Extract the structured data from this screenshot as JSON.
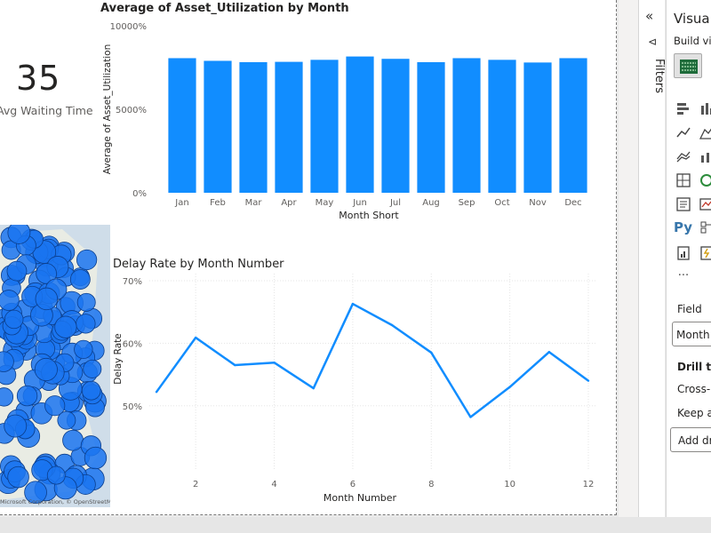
{
  "card": {
    "value": "35",
    "label": "Avg Waiting Time"
  },
  "bar_chart": {
    "title": "Average of Asset_Utilization by Month",
    "xlabel": "Month Short",
    "ylabel": "Average of Asset_Utilization",
    "bar_color": "#118dff"
  },
  "line_chart": {
    "title": "Delay Rate by Month Number",
    "xlabel": "Month Number",
    "ylabel": "Delay Rate",
    "line_color": "#118dff"
  },
  "map": {
    "attribution": "Microsoft Corporation, © OpenStreetMap  Terms",
    "bubble_color": "#1a74f0",
    "bubble_count": 130
  },
  "filters_pane": {
    "collapse_icon": "«",
    "funnel_icon": "⊲",
    "label": "Filters"
  },
  "visualizations_pane": {
    "title": "Visualizations",
    "build_label": "Build visual",
    "field_label": "Field",
    "field_value": "Month Short",
    "drill_through_label": "Drill through",
    "cross_report_label": "Cross-report",
    "keep_all_filters_label": "Keep all filters",
    "add_drill_through_label": "Add drill-through fields here",
    "more_label": "···",
    "python_label": "Py"
  },
  "chart_data": [
    {
      "type": "bar",
      "title": "Average of Asset_Utilization by Month",
      "xlabel": "Month Short",
      "ylabel": "Average of Asset_Utilization",
      "categories": [
        "Jan",
        "Feb",
        "Mar",
        "Apr",
        "May",
        "Jun",
        "Jul",
        "Aug",
        "Sep",
        "Oct",
        "Nov",
        "Dec"
      ],
      "values": [
        8060,
        7900,
        7820,
        7840,
        7960,
        8160,
        8020,
        7820,
        8060,
        7960,
        7800,
        8060
      ],
      "ylim": [
        0,
        10000
      ],
      "yticks": [
        "0%",
        "5000%",
        "10000%"
      ],
      "ytick_values": [
        0,
        5000,
        10000
      ],
      "grid": false
    },
    {
      "type": "line",
      "title": "Delay Rate by Month Number",
      "xlabel": "Month Number",
      "ylabel": "Delay Rate",
      "x": [
        1,
        2,
        3,
        4,
        5,
        6,
        7,
        8,
        9,
        10,
        11,
        12
      ],
      "values": [
        52.2,
        60.9,
        56.5,
        56.9,
        52.8,
        66.3,
        62.9,
        58.5,
        48.2,
        53.0,
        58.6,
        54.0
      ],
      "ylim": [
        45,
        70
      ],
      "xticks": [
        "2",
        "4",
        "6",
        "8",
        "10",
        "12"
      ],
      "xtick_values": [
        2,
        4,
        6,
        8,
        10,
        12
      ],
      "yticks": [
        "50%",
        "60%",
        "70%"
      ],
      "ytick_values": [
        50,
        60,
        70
      ],
      "grid": true
    }
  ]
}
